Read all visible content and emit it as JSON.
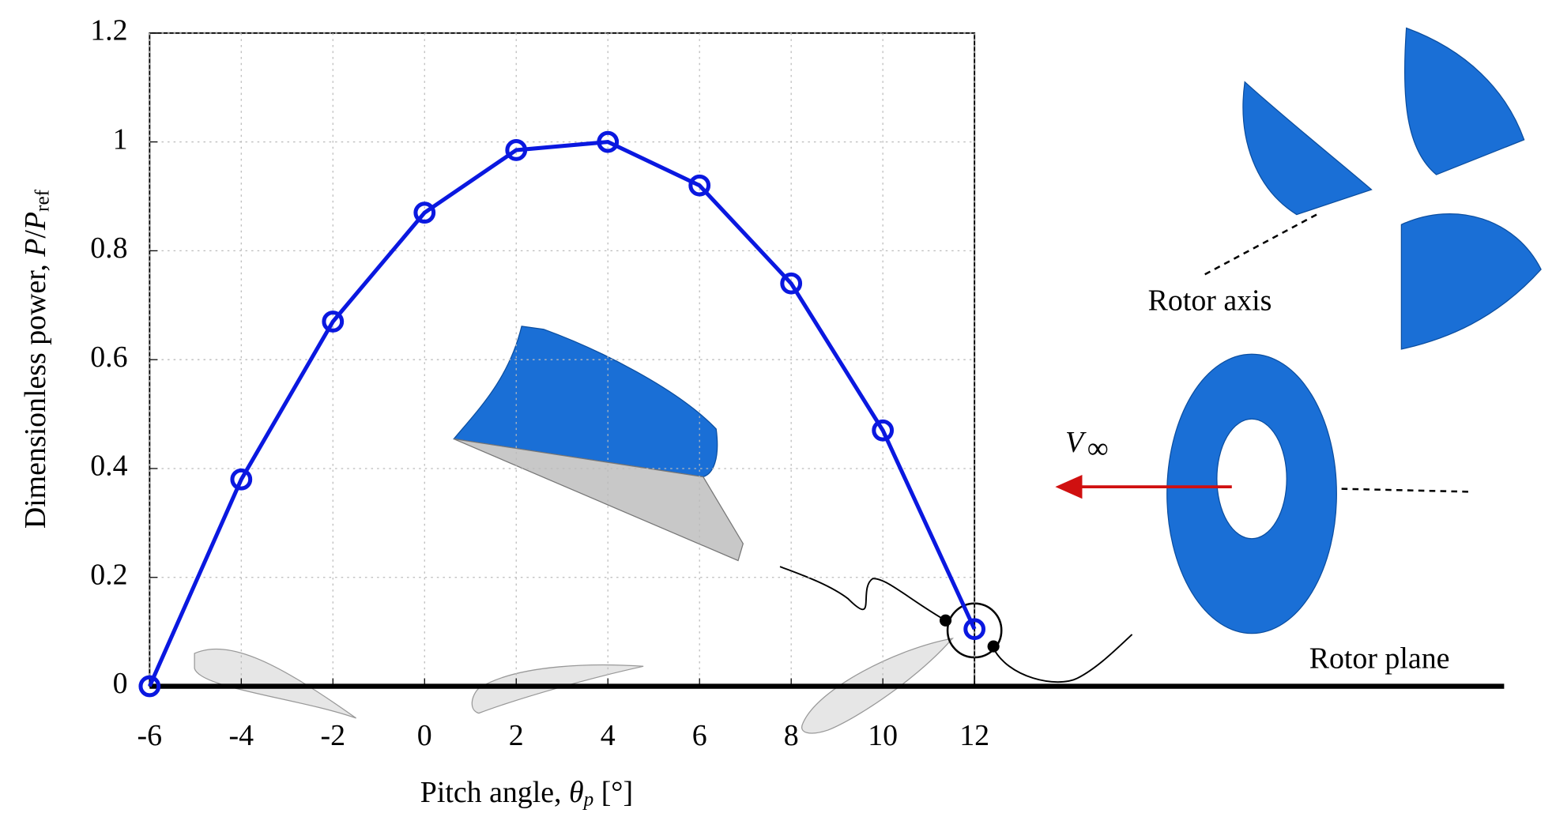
{
  "chart_data": {
    "type": "line",
    "x": [
      -6,
      -4,
      -2,
      0,
      2,
      4,
      6,
      8,
      10,
      12
    ],
    "series": [
      {
        "name": "P/Pref",
        "color": "#0a18e0",
        "values": [
          0,
          0.38,
          0.67,
          0.87,
          0.985,
          1.0,
          0.92,
          0.74,
          0.47,
          0.105
        ]
      }
    ],
    "xlim": [
      -6,
      12
    ],
    "xticks": [
      -6,
      -4,
      -2,
      0,
      2,
      4,
      6,
      8,
      10,
      12
    ],
    "ylim": [
      0,
      1.2
    ],
    "yticks": [
      0,
      0.2,
      0.4,
      0.6,
      0.8,
      1,
      {
        "value": 1.2,
        "label": "1.2"
      }
    ],
    "grid": true,
    "ylabel": [
      "Dimensionless power, ",
      "P",
      "/",
      "P",
      "ref"
    ],
    "xlabel": [
      "Pitch angle, ",
      "θ",
      "p",
      " [°]"
    ],
    "annotations": [
      "Rotor axis",
      "Rotor plane",
      "V",
      "∞"
    ]
  }
}
